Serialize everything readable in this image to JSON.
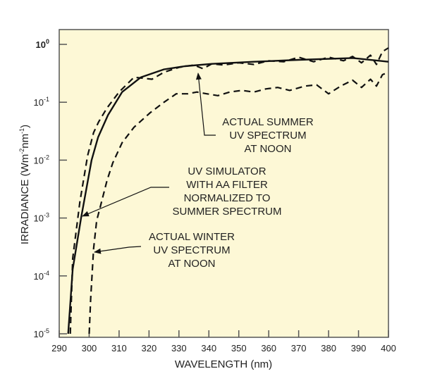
{
  "chart_data": {
    "type": "line",
    "title": "",
    "xlabel": "WAVELENGTH (nm)",
    "ylabel": "IRRADIANCE (Wm-2 nm-1)",
    "ylabel_parts": {
      "pre": "IRRADIANCE (Wm",
      "sup1": "-2",
      "mid": "nm",
      "sup2": "-1",
      "post": ")"
    },
    "xlim": [
      290,
      400
    ],
    "ylim": [
      1e-05,
      1
    ],
    "yscale": "log",
    "grid": false,
    "background_color": "#fdf8d6",
    "x_ticks": [
      "290",
      "300",
      "310",
      "320",
      "330",
      "340",
      "350",
      "360",
      "370",
      "380",
      "390",
      "400"
    ],
    "y_ticks": [
      {
        "base": "10",
        "exp": "0"
      },
      {
        "base": "10",
        "exp": "-1"
      },
      {
        "base": "10",
        "exp": "-2"
      },
      {
        "base": "10",
        "exp": "-3"
      },
      {
        "base": "10",
        "exp": "-4"
      },
      {
        "base": "10",
        "exp": "-5"
      }
    ],
    "series": [
      {
        "style": "solid",
        "x": [
          293,
          294.5,
          297.3,
          300.8,
          303,
          306.3,
          311,
          317.3,
          325,
          332,
          341,
          355,
          370,
          388,
          400
        ],
        "y": [
          1e-05,
          0.00013,
          0.001,
          0.01,
          0.025,
          0.06,
          0.15,
          0.27,
          0.37,
          0.42,
          0.46,
          0.5,
          0.54,
          0.58,
          0.5
        ]
      },
      {
        "style": "dashed",
        "x": [
          293.7,
          294.5,
          296.9,
          299.5,
          301.5,
          303.2,
          306,
          310,
          315,
          318,
          321,
          325,
          330,
          335,
          338,
          341,
          345,
          350,
          355,
          360,
          365,
          370,
          375,
          380,
          385,
          388,
          391,
          394,
          396,
          398,
          400
        ],
        "y": [
          1e-05,
          0.0002,
          0.0019,
          0.012,
          0.03,
          0.046,
          0.08,
          0.15,
          0.27,
          0.26,
          0.25,
          0.33,
          0.4,
          0.44,
          0.38,
          0.46,
          0.44,
          0.48,
          0.45,
          0.52,
          0.5,
          0.6,
          0.5,
          0.6,
          0.52,
          0.62,
          0.48,
          0.65,
          0.45,
          0.75,
          0.87
        ]
      },
      {
        "style": "dashed",
        "x": [
          300,
          300.5,
          301.5,
          302.5,
          303.9,
          306,
          307.9,
          311,
          315,
          320.4,
          325,
          329.1,
          333,
          336,
          339.3,
          343,
          347,
          351,
          355,
          359,
          363,
          367,
          372,
          376,
          380,
          384,
          388,
          391,
          394,
          396,
          398,
          400
        ],
        "y": [
          1e-05,
          4e-05,
          0.0003,
          0.0009,
          0.0017,
          0.0045,
          0.009,
          0.02,
          0.037,
          0.066,
          0.1,
          0.14,
          0.14,
          0.15,
          0.14,
          0.13,
          0.15,
          0.16,
          0.15,
          0.17,
          0.18,
          0.16,
          0.19,
          0.2,
          0.14,
          0.19,
          0.24,
          0.18,
          0.25,
          0.19,
          0.3,
          0.33
        ]
      }
    ],
    "annotations": [
      {
        "lines": [
          "ACTUAL SUMMER",
          "UV SPECTRUM",
          "AT NOON"
        ]
      },
      {
        "lines": [
          "UV SIMULATOR",
          "WITH AA FILTER",
          "NORMALIZED TO",
          "SUMMER SPECTRUM"
        ]
      },
      {
        "lines": [
          "ACTUAL WINTER",
          "UV SPECTRUM",
          "AT NOON"
        ]
      }
    ]
  }
}
